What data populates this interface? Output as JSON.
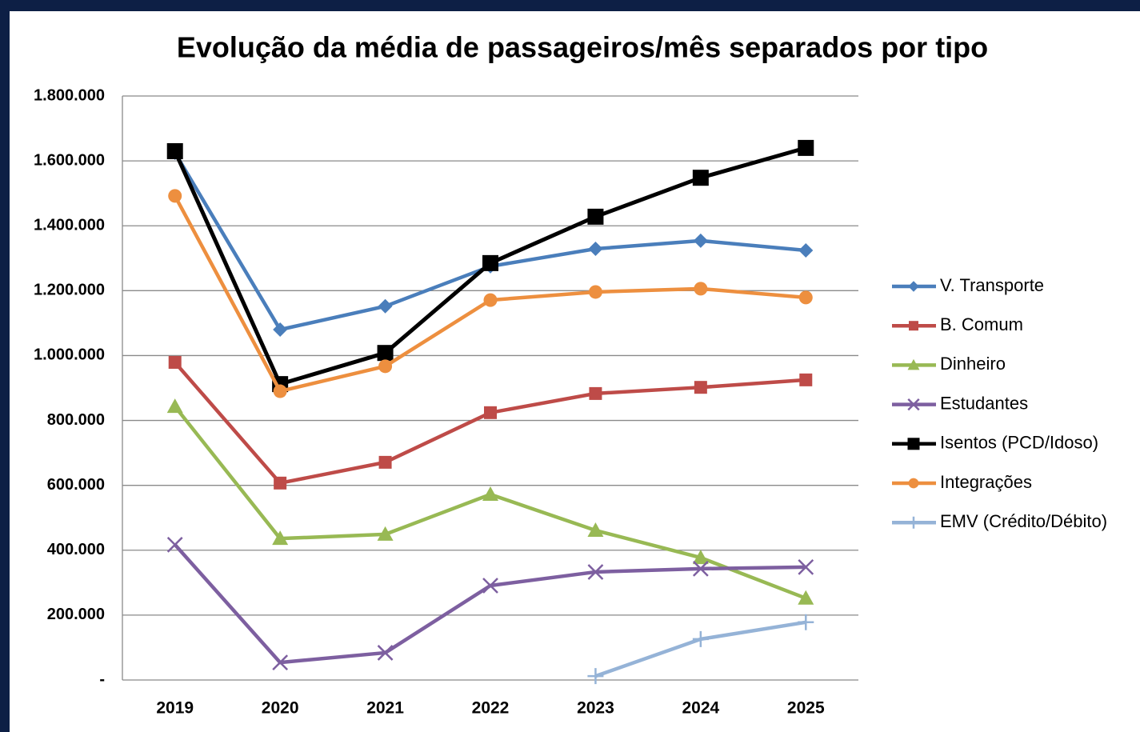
{
  "chart_data": {
    "type": "line",
    "title": "Evolução da média de passageiros/mês separados por tipo",
    "categories": [
      "2019",
      "2020",
      "2021",
      "2022",
      "2023",
      "2024",
      "2025"
    ],
    "series": [
      {
        "name": "V. Transporte",
        "color": "#4a7ebb",
        "marker": "diamond",
        "values": [
          1625000,
          1080000,
          1152000,
          1275000,
          1329000,
          1354000,
          1324000
        ]
      },
      {
        "name": "B. Comum",
        "color": "#be4b48",
        "marker": "square",
        "values": [
          979000,
          607000,
          671000,
          824000,
          883000,
          902000,
          925000
        ]
      },
      {
        "name": "Dinheiro",
        "color": "#98b954",
        "marker": "triangle",
        "values": [
          843000,
          436000,
          449000,
          572000,
          461000,
          377000,
          252000
        ]
      },
      {
        "name": "Estudantes",
        "color": "#7d5fa0",
        "marker": "x",
        "values": [
          417000,
          54000,
          84000,
          291000,
          333000,
          343000,
          348000
        ]
      },
      {
        "name": "Isentos (PCD/Idoso)",
        "color": "#000000",
        "marker": "bigsquare",
        "values": [
          1630000,
          912000,
          1008000,
          1285000,
          1428000,
          1548000,
          1640000
        ]
      },
      {
        "name": "Integrações",
        "color": "#ed8f3f",
        "marker": "circle",
        "values": [
          1492000,
          890000,
          967000,
          1171000,
          1196000,
          1206000,
          1179000
        ]
      },
      {
        "name": "EMV (Crédito/Débito)",
        "color": "#95b3d7",
        "marker": "plus",
        "values": [
          null,
          null,
          null,
          null,
          12000,
          126000,
          178000
        ]
      }
    ],
    "ylim": [
      0,
      1800000
    ],
    "yticks": [
      {
        "value": 0,
        "label": "-"
      },
      {
        "value": 200000,
        "label": "200.000"
      },
      {
        "value": 400000,
        "label": "400.000"
      },
      {
        "value": 600000,
        "label": "600.000"
      },
      {
        "value": 800000,
        "label": "800.000"
      },
      {
        "value": 1000000,
        "label": "1.000.000"
      },
      {
        "value": 1200000,
        "label": "1.200.000"
      },
      {
        "value": 1400000,
        "label": "1.400.000"
      },
      {
        "value": 1600000,
        "label": "1.600.000"
      },
      {
        "value": 1800000,
        "label": "1.800.000"
      }
    ],
    "grid": true,
    "legend": "right"
  }
}
